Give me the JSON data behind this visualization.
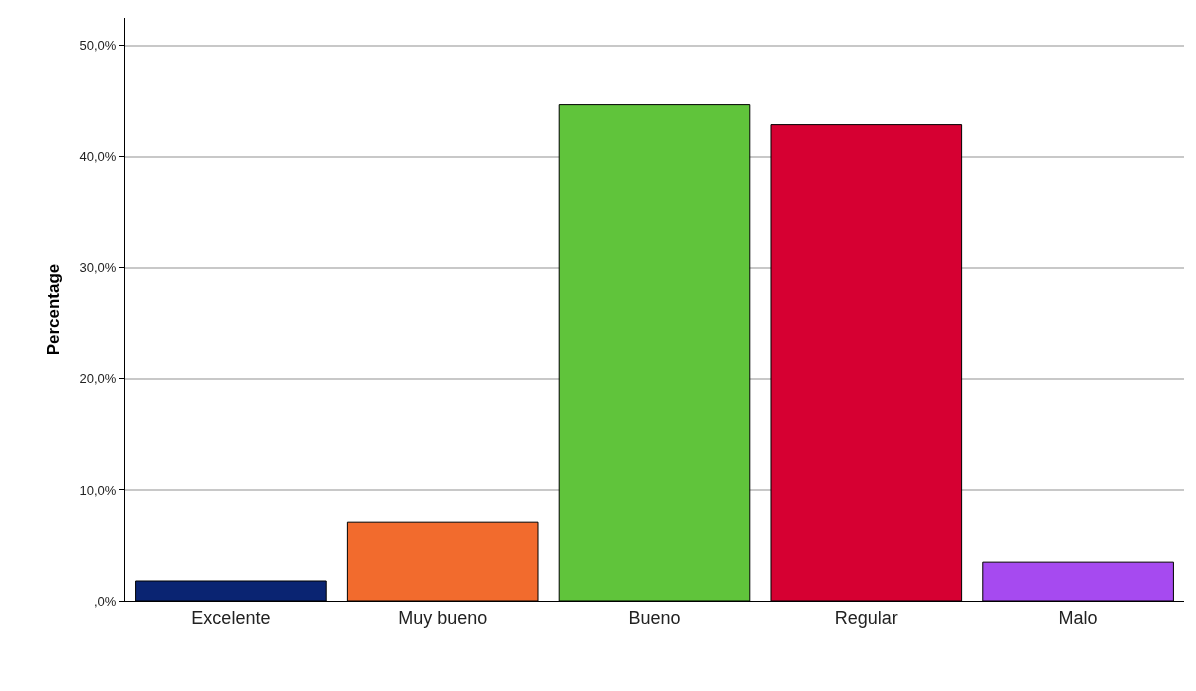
{
  "chart_data": {
    "type": "bar",
    "ylabel": "Percentage",
    "categories": [
      "Excelente",
      "Muy bueno",
      "Bueno",
      "Regular",
      "Malo"
    ],
    "values": [
      1.8,
      7.1,
      44.7,
      42.9,
      3.5
    ],
    "colors": [
      "#0a2472",
      "#f26b2d",
      "#60c43b",
      "#d60032",
      "#a64af0"
    ],
    "ylim": [
      0,
      52.5
    ],
    "yticks": [
      {
        "value": 0,
        "label": ",0%"
      },
      {
        "value": 10,
        "label": "10,0%"
      },
      {
        "value": 20,
        "label": "20,0%"
      },
      {
        "value": 30,
        "label": "30,0%"
      },
      {
        "value": 40,
        "label": "40,0%"
      },
      {
        "value": 50,
        "label": "50,0%"
      }
    ],
    "grid": "y"
  }
}
